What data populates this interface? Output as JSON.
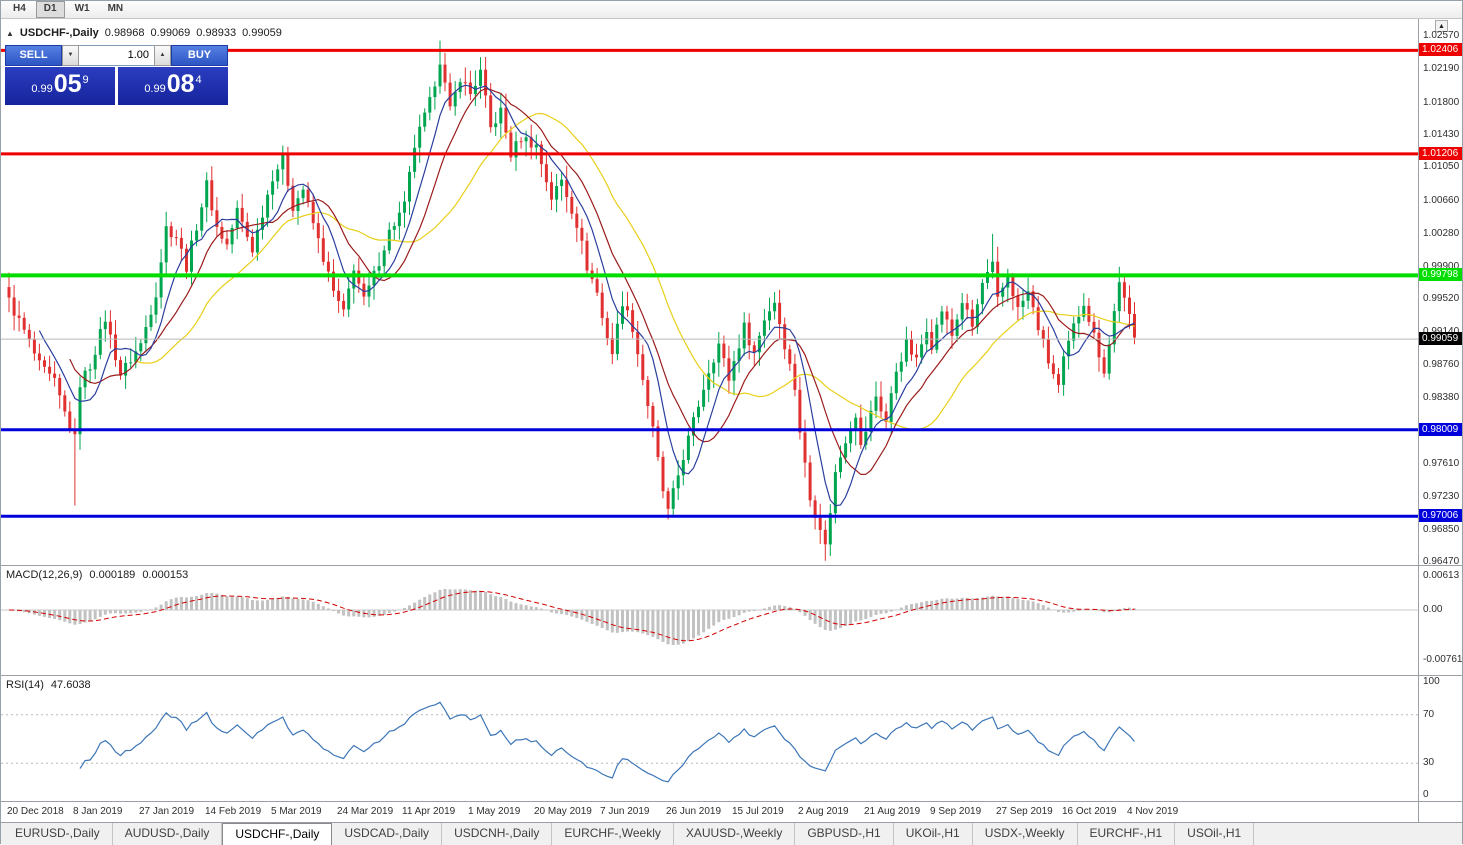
{
  "toolbar": {
    "timeframes": [
      {
        "label": "H4",
        "active": false
      },
      {
        "label": "D1",
        "active": true
      },
      {
        "label": "W1",
        "active": false
      },
      {
        "label": "MN",
        "active": false
      }
    ]
  },
  "scroll_button_icon": "▲",
  "chart_header": {
    "collapse_icon": "▲",
    "symbol": "USDCHF-,Daily",
    "open": "0.98968",
    "high": "0.99069",
    "low": "0.98933",
    "close": "0.99059"
  },
  "trade_panel": {
    "sell_label": "SELL",
    "buy_label": "BUY",
    "volume": "1.00",
    "spin_down_icon": "▼",
    "spin_up_icon": "▲",
    "sell_price": {
      "prefix": "0.99",
      "big": "05",
      "sup": "9"
    },
    "buy_price": {
      "prefix": "0.99",
      "big": "08",
      "sup": "4"
    }
  },
  "macd": {
    "name": "MACD(12,26,9)",
    "main_value": "0.000189",
    "signal_value": "0.000153",
    "axis_top": "0.00613",
    "axis_zero": "0.00",
    "axis_bottom": "-0.007612"
  },
  "rsi": {
    "name": "RSI(14)",
    "value": "47.6038",
    "axis_labels": [
      "100",
      "70",
      "30",
      "0"
    ],
    "levels": [
      70,
      30
    ],
    "color": "#3d76b8"
  },
  "tabs": [
    {
      "label": "EURUSD-,Daily",
      "active": false
    },
    {
      "label": "AUDUSD-,Daily",
      "active": false
    },
    {
      "label": "USDCHF-,Daily",
      "active": true
    },
    {
      "label": "USDCAD-,Daily",
      "active": false
    },
    {
      "label": "USDCNH-,Daily",
      "active": false
    },
    {
      "label": "EURCHF-,Weekly",
      "active": false
    },
    {
      "label": "XAUUSD-,Weekly",
      "active": false
    },
    {
      "label": "GBPUSD-,H1",
      "active": false
    },
    {
      "label": "UKOil-,H1",
      "active": false
    },
    {
      "label": "USDX-,Weekly",
      "active": false
    },
    {
      "label": "EURCHF-,H1",
      "active": false
    },
    {
      "label": "USOil-,H1",
      "active": false
    }
  ],
  "chart_data": {
    "type": "candlestick",
    "symbol": "USDCHF",
    "timeframe": "Daily",
    "bars_total": 223,
    "x_label_every_bars": 13,
    "x_labels": [
      "20 Dec 2018",
      "8 Jan 2019",
      "27 Jan 2019",
      "14 Feb 2019",
      "5 Mar 2019",
      "24 Mar 2019",
      "11 Apr 2019",
      "1 May 2019",
      "20 May 2019",
      "7 Jun 2019",
      "26 Jun 2019",
      "15 Jul 2019",
      "2 Aug 2019",
      "21 Aug 2019",
      "9 Sep 2019",
      "27 Sep 2019",
      "16 Oct 2019",
      "4 Nov 2019"
    ],
    "y_range": [
      0.9644,
      1.0277
    ],
    "y_ticks": [
      1.0257,
      1.0219,
      1.018,
      1.0143,
      1.0105,
      1.0066,
      1.0028,
      0.999,
      0.9952,
      0.9914,
      0.9876,
      0.9838,
      0.98,
      0.9761,
      0.9723,
      0.9685,
      0.9647
    ],
    "h_lines": [
      {
        "value": 1.02406,
        "label": "1.02406",
        "color": "#ee0000",
        "width": 3
      },
      {
        "value": 1.01206,
        "label": "1.01206",
        "color": "#ee0000",
        "width": 3
      },
      {
        "value": 0.99798,
        "label": "0.99798",
        "color": "#00dd00",
        "width": 4
      },
      {
        "value": 0.98009,
        "label": "0.98009",
        "color": "#0000dd",
        "width": 3
      },
      {
        "value": 0.97006,
        "label": "0.97006",
        "color": "#0000dd",
        "width": 3
      }
    ],
    "current_price": {
      "value": 0.99059,
      "label": "0.99059"
    },
    "candle_colors": {
      "up": "#00a550",
      "down": "#e13030"
    },
    "moving_averages": [
      {
        "period": 7,
        "color": "#2b3f9e"
      },
      {
        "period": 13,
        "color": "#9b1c1c"
      },
      {
        "period": 26,
        "color": "#e8cf18"
      }
    ],
    "close_anchors": [
      [
        0,
        0.995
      ],
      [
        3,
        0.9915
      ],
      [
        6,
        0.9875
      ],
      [
        9,
        0.9855
      ],
      [
        11,
        0.982
      ],
      [
        13,
        0.979
      ],
      [
        14,
        0.9855
      ],
      [
        16,
        0.9875
      ],
      [
        19,
        0.993
      ],
      [
        22,
        0.9865
      ],
      [
        26,
        0.99
      ],
      [
        29,
        0.996
      ],
      [
        31,
        1.0035
      ],
      [
        33,
        1.0025
      ],
      [
        35,
        0.999
      ],
      [
        39,
        1.0085
      ],
      [
        41,
        1.0035
      ],
      [
        43,
        1.0015
      ],
      [
        45,
        1.0055
      ],
      [
        48,
        1.001
      ],
      [
        52,
        1.0095
      ],
      [
        54,
        1.0115
      ],
      [
        56,
        1.006
      ],
      [
        58,
        1.008
      ],
      [
        61,
        1.002
      ],
      [
        64,
        0.996
      ],
      [
        66,
        0.9935
      ],
      [
        68,
        0.999
      ],
      [
        70,
        0.995
      ],
      [
        72,
        0.998
      ],
      [
        75,
        1.003
      ],
      [
        78,
        1.006
      ],
      [
        80,
        1.013
      ],
      [
        83,
        1.018
      ],
      [
        85,
        1.023
      ],
      [
        87,
        1.017
      ],
      [
        89,
        1.021
      ],
      [
        91,
        1.019
      ],
      [
        93,
        1.0215
      ],
      [
        95,
        1.015
      ],
      [
        97,
        1.017
      ],
      [
        99,
        1.012
      ],
      [
        101,
        1.014
      ],
      [
        104,
        1.013
      ],
      [
        107,
        1.007
      ],
      [
        109,
        1.009
      ],
      [
        112,
        1.004
      ],
      [
        114,
        0.999
      ],
      [
        116,
        0.996
      ],
      [
        117,
        0.993
      ],
      [
        119,
        0.989
      ],
      [
        121,
        0.995
      ],
      [
        123,
        0.992
      ],
      [
        125,
        0.986
      ],
      [
        127,
        0.98
      ],
      [
        129,
        0.973
      ],
      [
        130,
        0.9705
      ],
      [
        133,
        0.977
      ],
      [
        136,
        0.983
      ],
      [
        138,
        0.987
      ],
      [
        140,
        0.99
      ],
      [
        142,
        0.986
      ],
      [
        143,
        0.988
      ],
      [
        145,
        0.992
      ],
      [
        147,
        0.989
      ],
      [
        149,
        0.993
      ],
      [
        151,
        0.995
      ],
      [
        153,
        0.99
      ],
      [
        155,
        0.985
      ],
      [
        156,
        0.98
      ],
      [
        158,
        0.972
      ],
      [
        160,
        0.969
      ],
      [
        161,
        0.9665
      ],
      [
        163,
        0.975
      ],
      [
        165,
        0.979
      ],
      [
        167,
        0.982
      ],
      [
        168,
        0.978
      ],
      [
        169,
        0.98
      ],
      [
        171,
        0.984
      ],
      [
        173,
        0.981
      ],
      [
        175,
        0.987
      ],
      [
        177,
        0.99
      ],
      [
        179,
        0.988
      ],
      [
        181,
        0.992
      ],
      [
        182,
        0.99
      ],
      [
        184,
        0.994
      ],
      [
        186,
        0.991
      ],
      [
        188,
        0.995
      ],
      [
        190,
        0.992
      ],
      [
        192,
        0.997
      ],
      [
        194,
        0.999
      ],
      [
        195,
        0.995
      ],
      [
        197,
        0.998
      ],
      [
        199,
        0.994
      ],
      [
        201,
        0.996
      ],
      [
        203,
        0.992
      ],
      [
        205,
        0.988
      ],
      [
        207,
        0.985
      ],
      [
        208,
        0.988
      ],
      [
        210,
        0.992
      ],
      [
        212,
        0.995
      ],
      [
        214,
        0.991
      ],
      [
        216,
        0.987
      ],
      [
        217,
        0.99
      ],
      [
        219,
        0.9975
      ],
      [
        220,
        0.995
      ],
      [
        221,
        0.993
      ],
      [
        222,
        0.9906
      ]
    ],
    "extremes": [
      {
        "i": 13,
        "low": 0.9713
      },
      {
        "i": 85,
        "high": 1.0252
      },
      {
        "i": 161,
        "low": 0.9649
      },
      {
        "i": 194,
        "high": 1.0028
      }
    ],
    "indicators": [
      {
        "name": "MACD",
        "params": [
          12,
          26,
          9
        ],
        "display_values": [
          0.000189,
          0.000153
        ]
      },
      {
        "name": "RSI",
        "params": [
          14
        ],
        "display_value": 47.6038
      }
    ]
  }
}
